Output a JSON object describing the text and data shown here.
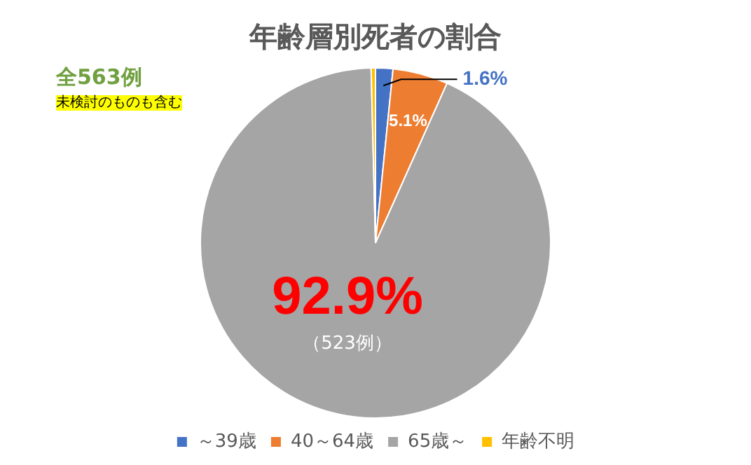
{
  "chart_data": {
    "type": "pie",
    "title": "年齢層別死者の割合",
    "categories": [
      "～39歳",
      "40～64歳",
      "65歳～",
      "年齢不明"
    ],
    "values": [
      1.6,
      5.1,
      92.9,
      0.4
    ],
    "colors": [
      "#4472c4",
      "#ed7d31",
      "#a5a5a5",
      "#ffc000"
    ],
    "value_labels": [
      "1.6%",
      "5.1%",
      "92.9%",
      null
    ],
    "annotations": [
      "全563例",
      "未検討のものも含む",
      "（523例）"
    ],
    "legend": "bottom"
  }
}
